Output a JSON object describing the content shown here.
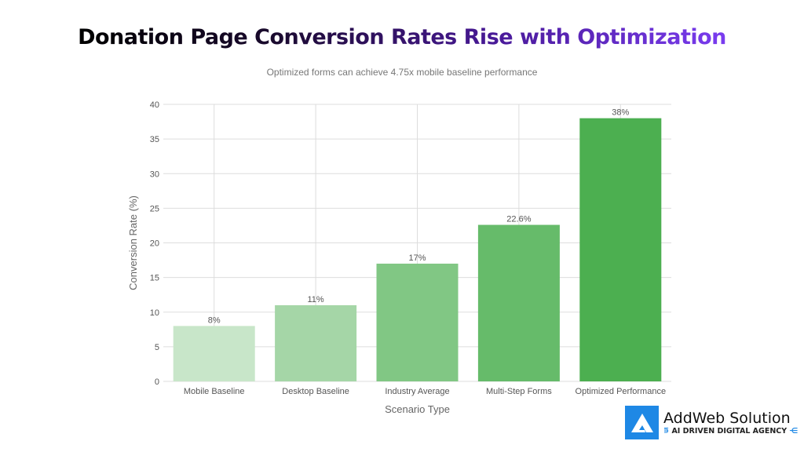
{
  "chart_data": {
    "type": "bar",
    "title": "Donation Page Conversion Rates Rise with Optimization",
    "subtitle": "Optimized forms can achieve 4.75x mobile baseline performance",
    "xlabel": "Scenario Type",
    "ylabel": "Conversion Rate (%)",
    "ylim": [
      0,
      40
    ],
    "yticks": [
      0,
      5,
      10,
      15,
      20,
      25,
      30,
      35,
      40
    ],
    "grid": true,
    "categories": [
      "Mobile Baseline",
      "Desktop Baseline",
      "Industry Average",
      "Multi-Step Forms",
      "Optimized Performance"
    ],
    "values": [
      8,
      11,
      17,
      22.6,
      38
    ],
    "labels": [
      "8%",
      "11%",
      "17%",
      "22.6%",
      "38%"
    ],
    "colors": [
      "#c8e6c9",
      "#a5d6a7",
      "#81c784",
      "#66bb6a",
      "#4caf50"
    ]
  },
  "logo": {
    "name": "AddWeb Solution",
    "tagline": "AI DRIVEN DIGITAL AGENCY"
  }
}
